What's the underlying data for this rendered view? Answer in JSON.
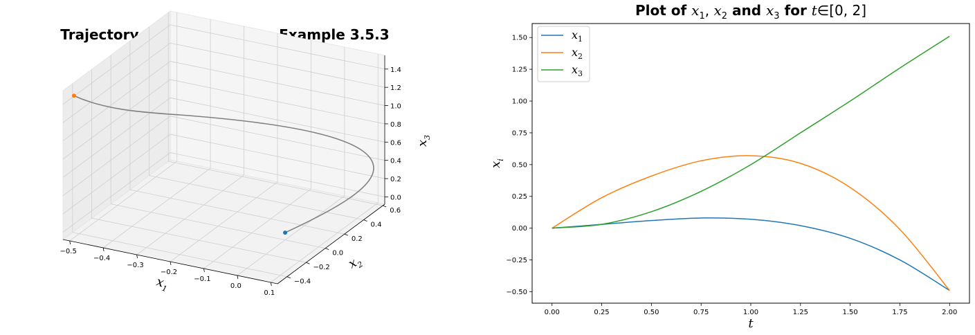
{
  "chart_data": [
    {
      "type": "line",
      "title": "Trajectory x(t), t∈[0, 2] from Example 3.5.3",
      "xlabel": "x1",
      "ylabel": "x2",
      "zlabel": "x3",
      "xticks": [
        "−0.5",
        "−0.4",
        "−0.3",
        "−0.2",
        "−0.1",
        "0.0",
        "0.1"
      ],
      "yticks": [
        "−0.4",
        "−0.2",
        "0.0",
        "0.2",
        "0.4",
        "0.6"
      ],
      "zticks": [
        "0.0",
        "0.2",
        "0.4",
        "0.6",
        "0.8",
        "1.0",
        "1.2",
        "1.4"
      ],
      "xlim": [
        -0.52,
        0.12
      ],
      "ylim": [
        -0.5,
        0.62
      ],
      "zlim": [
        -0.08,
        1.55
      ],
      "grid": true,
      "trajectory_color": "#808080",
      "start_point": {
        "x": 0.0,
        "y": 0.0,
        "z": 0.0,
        "color": "#1f77b4"
      },
      "end_point": {
        "x": -0.49,
        "y": -0.49,
        "z": 1.51,
        "color": "#ff7f0e"
      }
    },
    {
      "type": "line",
      "title": "Plot of x1, x2 and x3 for t∈[0, 2]",
      "xlabel": "t",
      "ylabel": "xi",
      "xlim": [
        -0.1,
        2.1
      ],
      "ylim": [
        -0.59,
        1.61
      ],
      "xticks": [
        "0.00",
        "0.25",
        "0.50",
        "0.75",
        "1.00",
        "1.25",
        "1.50",
        "1.75",
        "2.00"
      ],
      "yticks": [
        "−0.50",
        "−0.25",
        "0.00",
        "0.25",
        "0.50",
        "0.75",
        "1.00",
        "1.25",
        "1.50"
      ],
      "legend_position": "top-left",
      "x": [
        0.0,
        0.25,
        0.5,
        0.75,
        1.0,
        1.25,
        1.5,
        1.75,
        2.0
      ],
      "series": [
        {
          "name": "x1",
          "color": "#1f77b4",
          "values": [
            0.0,
            0.03,
            0.06,
            0.08,
            0.07,
            0.02,
            -0.08,
            -0.25,
            -0.49
          ]
        },
        {
          "name": "x2",
          "color": "#ff7f0e",
          "values": [
            0.0,
            0.24,
            0.41,
            0.53,
            0.57,
            0.51,
            0.32,
            -0.01,
            -0.49
          ]
        },
        {
          "name": "x3",
          "color": "#2ca02c",
          "values": [
            0.0,
            0.03,
            0.13,
            0.29,
            0.5,
            0.75,
            1.0,
            1.26,
            1.51
          ]
        }
      ]
    }
  ]
}
